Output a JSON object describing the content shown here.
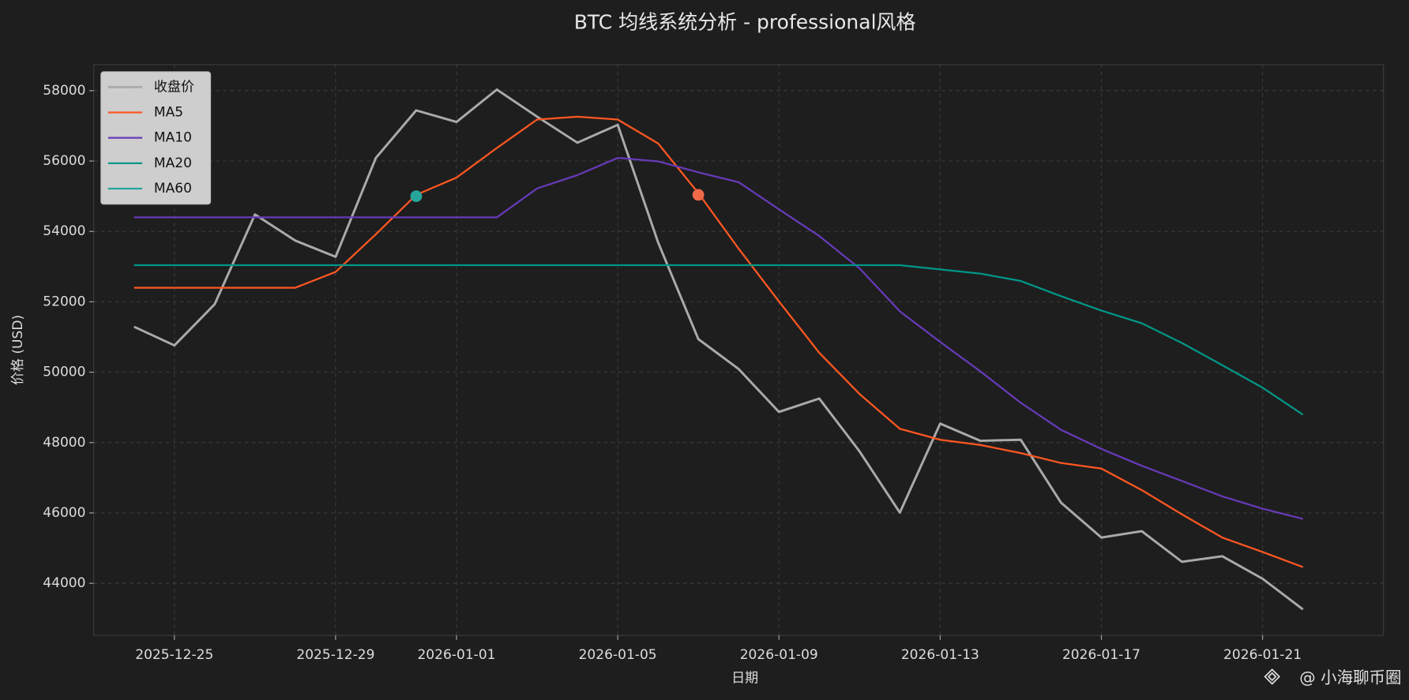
{
  "chart_data": {
    "type": "line",
    "title": "BTC 均线系统分析 - professional风格",
    "xlabel": "日期",
    "ylabel": "价格 (USD)",
    "watermark": "@ 小海聊币圈",
    "x": [
      "2025-12-24",
      "2025-12-25",
      "2025-12-26",
      "2025-12-27",
      "2025-12-28",
      "2025-12-29",
      "2025-12-30",
      "2025-12-31",
      "2026-01-01",
      "2026-01-02",
      "2026-01-03",
      "2026-01-04",
      "2026-01-05",
      "2026-01-06",
      "2026-01-07",
      "2026-01-08",
      "2026-01-09",
      "2026-01-10",
      "2026-01-11",
      "2026-01-12",
      "2026-01-13",
      "2026-01-14",
      "2026-01-15",
      "2026-01-16",
      "2026-01-17",
      "2026-01-18",
      "2026-01-19",
      "2026-01-20",
      "2026-01-21",
      "2026-01-22"
    ],
    "series": [
      {
        "name": "收盘价",
        "color": "#aaaaaa",
        "width": 2.6,
        "values": [
          51290,
          50760,
          51930,
          54480,
          53740,
          53280,
          56090,
          57440,
          57110,
          58030,
          57260,
          56520,
          57030,
          53690,
          50940,
          50090,
          48870,
          49250,
          47750,
          46010,
          48540,
          48050,
          48080,
          46290,
          45300,
          45480,
          44610,
          44770,
          44130,
          43260
        ]
      },
      {
        "name": "MA5",
        "color": "#ff5722",
        "width": 2,
        "values": [
          52400,
          52400,
          52400,
          52400,
          52400,
          52850,
          53920,
          55040,
          55530,
          56370,
          57180,
          57260,
          57180,
          56500,
          55090,
          53510,
          52010,
          50550,
          49380,
          48390,
          48080,
          47930,
          47700,
          47420,
          47260,
          46650,
          45960,
          45300,
          44890,
          44460
        ]
      },
      {
        "name": "MA10",
        "color": "#673ab7",
        "width": 2,
        "values": [
          54400,
          54400,
          54400,
          54400,
          54400,
          54400,
          54400,
          54400,
          54400,
          54400,
          55220,
          55600,
          56090,
          55990,
          55680,
          55400,
          54630,
          53870,
          52950,
          51730,
          50860,
          50020,
          49130,
          48360,
          47820,
          47340,
          46910,
          46470,
          46120,
          45830
        ]
      },
      {
        "name": "MA20",
        "color": "#009688",
        "width": 2,
        "values": [
          53040,
          53040,
          53040,
          53040,
          53040,
          53040,
          53040,
          53040,
          53040,
          53040,
          53040,
          53040,
          53040,
          53040,
          53040,
          53040,
          53040,
          53040,
          53040,
          53040,
          52920,
          52800,
          52590,
          52160,
          51750,
          51390,
          50830,
          50200,
          49560,
          48790
        ]
      },
      {
        "name": "MA60",
        "color": "#26a69a",
        "width": 2,
        "values": [
          null,
          null,
          null,
          null,
          null,
          null,
          null,
          null,
          null,
          null,
          null,
          null,
          null,
          null,
          null,
          null,
          null,
          null,
          null,
          null,
          null,
          null,
          null,
          null,
          null,
          null,
          null,
          null,
          null,
          null
        ]
      }
    ],
    "markers": [
      {
        "x": "2025-12-31",
        "value": 55000,
        "color": "#26a69a"
      },
      {
        "x": "2026-01-07",
        "value": 55040,
        "color": "#f06a4a"
      }
    ],
    "xlim": [
      "2025-12-23",
      "2026-01-24"
    ],
    "xticks": [
      "2025-12-25",
      "2025-12-29",
      "2026-01-01",
      "2026-01-05",
      "2026-01-09",
      "2026-01-13",
      "2026-01-17",
      "2026-01-21"
    ],
    "ylim": [
      42520,
      58740
    ],
    "yticks": [
      44000,
      46000,
      48000,
      50000,
      52000,
      54000,
      56000,
      58000
    ],
    "grid": true,
    "legend": "upper left"
  }
}
